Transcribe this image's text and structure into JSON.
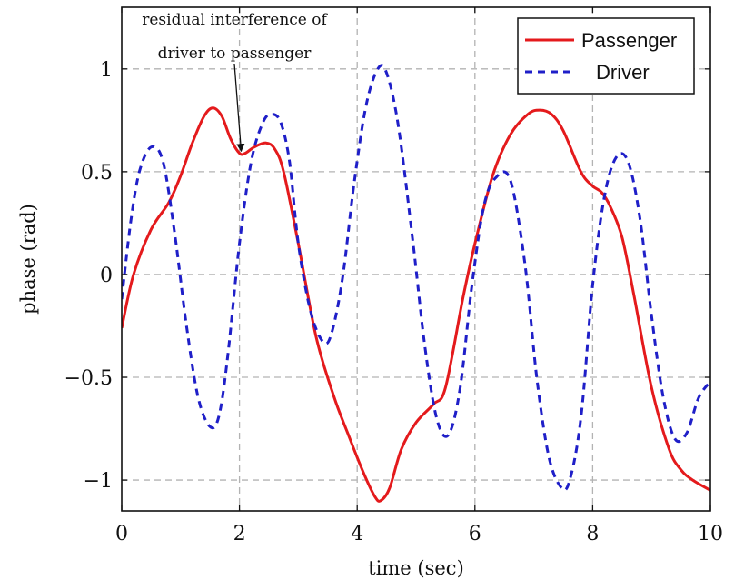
{
  "chart_data": {
    "type": "line",
    "xlabel": "time (sec)",
    "ylabel": "phase (rad)",
    "xlim": [
      0,
      10
    ],
    "ylim": [
      -1.15,
      1.3
    ],
    "xticks": [
      0,
      2,
      4,
      6,
      8,
      10
    ],
    "xtick_labels": [
      "0",
      "2",
      "4",
      "6",
      "8",
      "10"
    ],
    "yticks": [
      -1,
      -0.5,
      0,
      0.5,
      1
    ],
    "ytick_labels": [
      "−1",
      "−0.5",
      "0",
      "0.5",
      "1"
    ],
    "grid": true,
    "legend_position": "top-right",
    "series": [
      {
        "name": "Passenger",
        "color": "#e41a1c",
        "style": "solid",
        "x": [
          0,
          0.2,
          0.5,
          0.8,
          1.0,
          1.2,
          1.4,
          1.55,
          1.7,
          1.85,
          2.0,
          2.1,
          2.25,
          2.45,
          2.6,
          2.75,
          3.0,
          3.3,
          3.6,
          3.85,
          4.1,
          4.3,
          4.4,
          4.55,
          4.75,
          5.0,
          5.3,
          5.5,
          5.8,
          6.0,
          6.3,
          6.6,
          6.9,
          7.1,
          7.3,
          7.5,
          7.8,
          8.0,
          8.15,
          8.3,
          8.5,
          8.7,
          9.0,
          9.3,
          9.5,
          9.7,
          10.0
        ],
        "y": [
          -0.26,
          0.0,
          0.22,
          0.35,
          0.48,
          0.64,
          0.77,
          0.81,
          0.77,
          0.66,
          0.59,
          0.59,
          0.62,
          0.64,
          0.61,
          0.5,
          0.15,
          -0.3,
          -0.59,
          -0.78,
          -0.96,
          -1.08,
          -1.1,
          -1.04,
          -0.85,
          -0.72,
          -0.63,
          -0.55,
          -0.11,
          0.15,
          0.48,
          0.68,
          0.78,
          0.8,
          0.78,
          0.7,
          0.5,
          0.43,
          0.4,
          0.33,
          0.18,
          -0.1,
          -0.55,
          -0.85,
          -0.95,
          -1.0,
          -1.05
        ]
      },
      {
        "name": "Driver",
        "color": "#1f1fc8",
        "style": "dashed",
        "x": [
          0,
          0.15,
          0.3,
          0.5,
          0.7,
          0.9,
          1.1,
          1.3,
          1.5,
          1.65,
          1.8,
          2.0,
          2.2,
          2.4,
          2.55,
          2.7,
          2.85,
          3.0,
          3.2,
          3.4,
          3.55,
          3.75,
          3.95,
          4.15,
          4.35,
          4.5,
          4.7,
          4.95,
          5.15,
          5.35,
          5.55,
          5.75,
          5.95,
          6.15,
          6.35,
          6.6,
          6.85,
          7.05,
          7.25,
          7.45,
          7.6,
          7.8,
          8.0,
          8.2,
          8.4,
          8.6,
          8.8,
          9.0,
          9.2,
          9.4,
          9.6,
          9.8,
          10.0
        ],
        "y": [
          -0.12,
          0.25,
          0.5,
          0.62,
          0.55,
          0.2,
          -0.25,
          -0.6,
          -0.74,
          -0.69,
          -0.4,
          0.15,
          0.55,
          0.74,
          0.78,
          0.74,
          0.55,
          0.15,
          -0.17,
          -0.32,
          -0.3,
          -0.02,
          0.45,
          0.82,
          1.0,
          0.98,
          0.72,
          0.15,
          -0.35,
          -0.7,
          -0.78,
          -0.55,
          -0.05,
          0.33,
          0.47,
          0.46,
          0.05,
          -0.5,
          -0.88,
          -1.03,
          -1.01,
          -0.7,
          -0.05,
          0.38,
          0.57,
          0.55,
          0.28,
          -0.2,
          -0.6,
          -0.8,
          -0.77,
          -0.6,
          -0.52
        ]
      }
    ],
    "annotation": {
      "lines": [
        "residual interference of",
        "driver to passenger"
      ],
      "target": [
        2.03,
        0.6
      ]
    }
  }
}
